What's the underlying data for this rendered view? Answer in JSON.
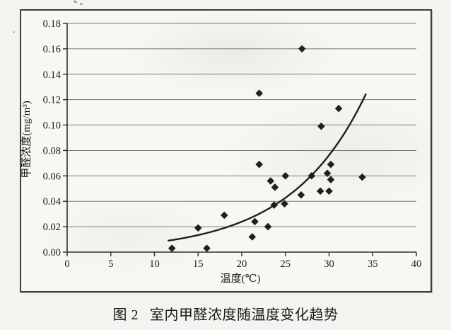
{
  "figure": {
    "label": "图 2",
    "title": "室内甲醛浓度随温度变化趋势"
  },
  "chart_data": {
    "type": "scatter",
    "title": "",
    "xlabel": "温度(℃)",
    "ylabel": "甲醛浓度(mg/m³)",
    "xlim": [
      0,
      40
    ],
    "ylim": [
      0,
      0.18
    ],
    "x_ticks": [
      0,
      5,
      10,
      15,
      20,
      25,
      30,
      35,
      40
    ],
    "y_ticks": [
      "0.00",
      "0.02",
      "0.04",
      "0.06",
      "0.08",
      "0.10",
      "0.12",
      "0.14",
      "0.16",
      "0.18"
    ],
    "grid": "horizontal-only",
    "legend": "none",
    "marker": "filled-diamond",
    "points": [
      [
        12,
        0.003
      ],
      [
        15,
        0.019
      ],
      [
        16,
        0.003
      ],
      [
        18,
        0.029
      ],
      [
        21.2,
        0.012
      ],
      [
        21.5,
        0.024
      ],
      [
        23,
        0.02
      ],
      [
        22,
        0.069
      ],
      [
        22,
        0.125
      ],
      [
        23.3,
        0.056
      ],
      [
        23.8,
        0.051
      ],
      [
        23.7,
        0.037
      ],
      [
        24.9,
        0.038
      ],
      [
        25,
        0.06
      ],
      [
        26.8,
        0.045
      ],
      [
        26.9,
        0.16
      ],
      [
        28,
        0.06
      ],
      [
        29,
        0.048
      ],
      [
        30,
        0.048
      ],
      [
        29.1,
        0.099
      ],
      [
        29.8,
        0.062
      ],
      [
        30.2,
        0.057
      ],
      [
        30.2,
        0.069
      ],
      [
        31.1,
        0.113
      ],
      [
        33.8,
        0.059
      ]
    ],
    "trendline": {
      "type": "exponential",
      "equation_estimate": "y ≈ 0.00235·e^(0.116x)",
      "a": 0.00235,
      "b": 0.116,
      "x_start": 11.6,
      "x_end": 34.2
    }
  },
  "colors": {
    "ink": "#1f1f1f",
    "grid": "#7d7a76",
    "axis": "#2e2d2b",
    "text": "#1c1b19"
  }
}
